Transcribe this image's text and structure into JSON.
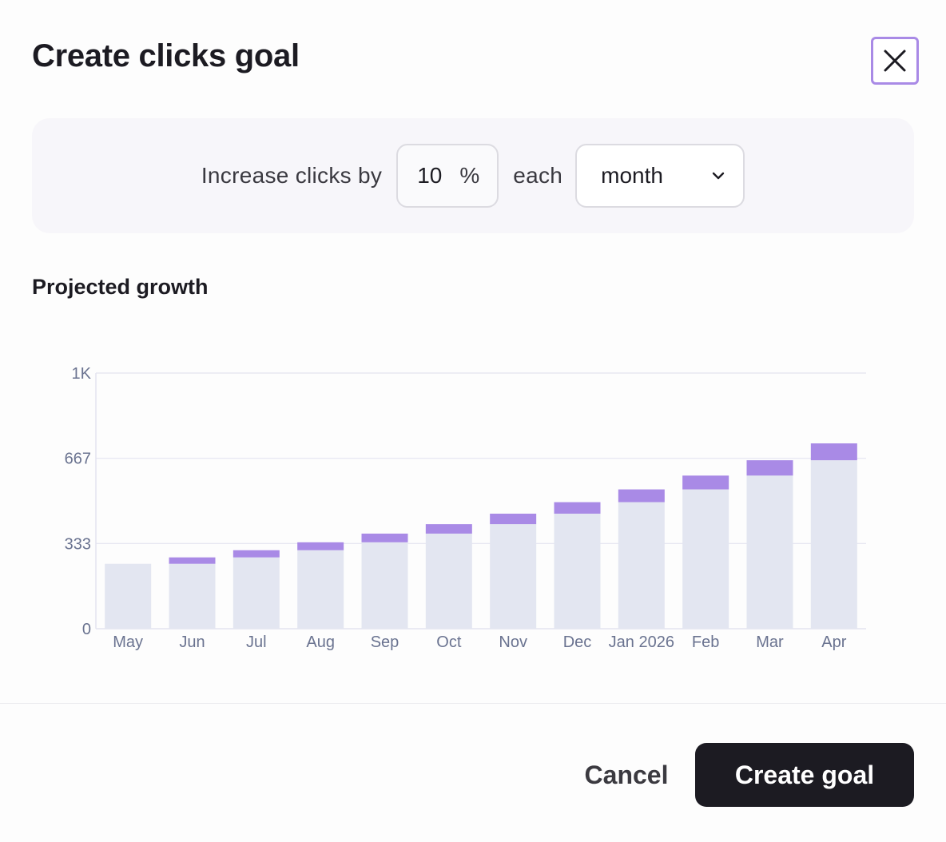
{
  "dialog": {
    "title": "Create clicks goal",
    "close_icon": "close-icon"
  },
  "goal_config": {
    "prefix": "Increase clicks by",
    "percent_value": "10",
    "percent_sign": "%",
    "middle": "each",
    "period_selected": "month",
    "period_icon": "chevron-down-icon"
  },
  "section": {
    "title": "Projected growth"
  },
  "colors": {
    "base_bar": "#e3e6f1",
    "growth_bar": "#a98ae6",
    "axis_text": "#6a7390",
    "grid": "#e4e4f0",
    "primary_button": "#1c1b22",
    "focus_ring": "#a98ae6"
  },
  "chart_data": {
    "type": "bar",
    "stacked": true,
    "categories": [
      "May",
      "Jun",
      "Jul",
      "Aug",
      "Sep",
      "Oct",
      "Nov",
      "Dec",
      "Jan 2026",
      "Feb",
      "Mar",
      "Apr"
    ],
    "series": [
      {
        "values": [
          254,
          254,
          279,
          307,
          338,
          372,
          409,
          450,
          495,
          545,
          599,
          659
        ]
      },
      {
        "values": [
          0,
          25,
          28,
          31,
          34,
          37,
          41,
          45,
          50,
          54,
          60,
          66
        ]
      }
    ],
    "yticks": [
      "0",
      "333",
      "667",
      "1K"
    ],
    "ylim": [
      0,
      1000
    ],
    "grid": true
  },
  "footer": {
    "cancel_label": "Cancel",
    "create_label": "Create goal"
  }
}
